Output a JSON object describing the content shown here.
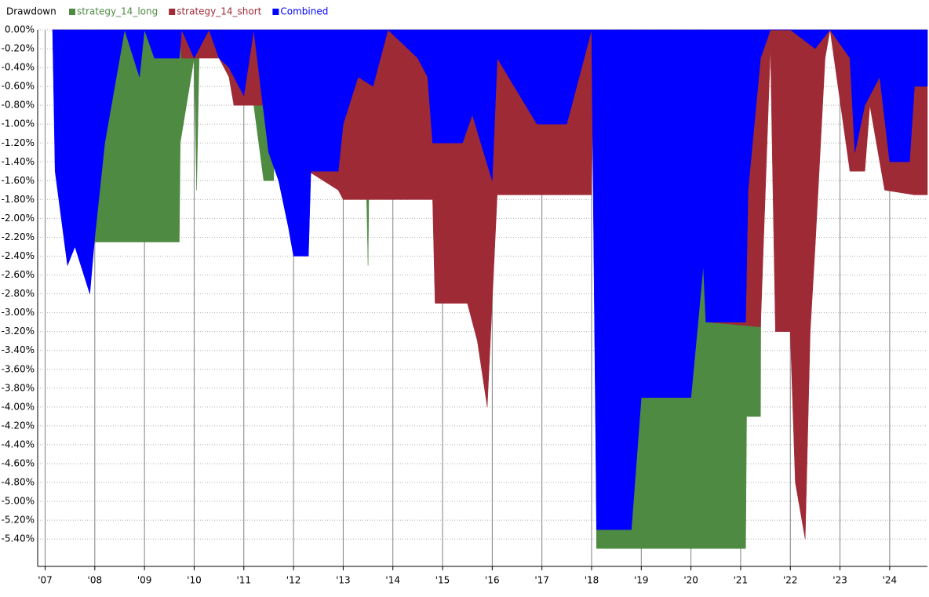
{
  "chart_data": {
    "type": "area",
    "title": "Drawdown",
    "xlim": [
      2006.85,
      2024.76
    ],
    "ylim": [
      -5.69,
      0
    ],
    "grid": true,
    "xticks": [
      {
        "value": 2007,
        "label": "'07"
      },
      {
        "value": 2008,
        "label": "'08"
      },
      {
        "value": 2009,
        "label": "'09"
      },
      {
        "value": 2010,
        "label": "'10"
      },
      {
        "value": 2011,
        "label": "'11"
      },
      {
        "value": 2012,
        "label": "'12"
      },
      {
        "value": 2013,
        "label": "'13"
      },
      {
        "value": 2014,
        "label": "'14"
      },
      {
        "value": 2015,
        "label": "'15"
      },
      {
        "value": 2016,
        "label": "'16"
      },
      {
        "value": 2017,
        "label": "'17"
      },
      {
        "value": 2018,
        "label": "'18"
      },
      {
        "value": 2019,
        "label": "'19"
      },
      {
        "value": 2020,
        "label": "'20"
      },
      {
        "value": 2021,
        "label": "'21"
      },
      {
        "value": 2022,
        "label": "'22"
      },
      {
        "value": 2023,
        "label": "'23"
      },
      {
        "value": 2024,
        "label": "'24"
      }
    ],
    "yticks": [
      {
        "value": 0,
        "label": "0.00%"
      },
      {
        "value": -0.2,
        "label": "-0.20%"
      },
      {
        "value": -0.4,
        "label": "-0.40%"
      },
      {
        "value": -0.6,
        "label": "-0.60%"
      },
      {
        "value": -0.8,
        "label": "-0.80%"
      },
      {
        "value": -1.0,
        "label": "-1.00%"
      },
      {
        "value": -1.2,
        "label": "-1.20%"
      },
      {
        "value": -1.4,
        "label": "-1.40%"
      },
      {
        "value": -1.6,
        "label": "-1.60%"
      },
      {
        "value": -1.8,
        "label": "-1.80%"
      },
      {
        "value": -2.0,
        "label": "-2.00%"
      },
      {
        "value": -2.2,
        "label": "-2.20%"
      },
      {
        "value": -2.4,
        "label": "-2.40%"
      },
      {
        "value": -2.6,
        "label": "-2.60%"
      },
      {
        "value": -2.8,
        "label": "-2.80%"
      },
      {
        "value": -3.0,
        "label": "-3.00%"
      },
      {
        "value": -3.2,
        "label": "-3.20%"
      },
      {
        "value": -3.4,
        "label": "-3.40%"
      },
      {
        "value": -3.6,
        "label": "-3.60%"
      },
      {
        "value": -3.8,
        "label": "-3.80%"
      },
      {
        "value": -4.0,
        "label": "-4.00%"
      },
      {
        "value": -4.2,
        "label": "-4.20%"
      },
      {
        "value": -4.4,
        "label": "-4.40%"
      },
      {
        "value": -4.6,
        "label": "-4.60%"
      },
      {
        "value": -4.8,
        "label": "-4.80%"
      },
      {
        "value": -5.0,
        "label": "-5.00%"
      },
      {
        "value": -5.2,
        "label": "-5.20%"
      },
      {
        "value": -5.4,
        "label": "-5.40%"
      }
    ],
    "series": [
      {
        "name": "strategy_14_long",
        "color": "#4e8a41",
        "x": [
          2007.15,
          2007.6,
          2008.0,
          2009.7,
          2009.72,
          2010.0,
          2010.05,
          2010.1,
          2010.2,
          2011.0,
          2011.4,
          2011.6,
          2011.65,
          2013.4,
          2013.5,
          2013.55,
          2018.05,
          2018.1,
          2021.1,
          2021.12,
          2021.4,
          2021.42,
          2022.9,
          2023.0,
          2023.2,
          2024.76
        ],
        "values": [
          0,
          -2.0,
          -2.25,
          -2.25,
          -1.2,
          -0.3,
          -1.7,
          -0.3,
          0,
          0,
          -1.6,
          -1.6,
          0,
          0,
          -2.5,
          0,
          0,
          -5.5,
          -5.5,
          -4.1,
          -4.1,
          0,
          0,
          -0.15,
          0,
          0
        ]
      },
      {
        "name": "strategy_14_short",
        "color": "#9e2a35",
        "x": [
          2007.15,
          2009.7,
          2009.75,
          2010.5,
          2010.7,
          2010.8,
          2011.4,
          2011.45,
          2012.3,
          2012.9,
          2013.0,
          2014.8,
          2014.85,
          2015.5,
          2015.7,
          2015.9,
          2016.1,
          2018.0,
          2018.05,
          2020.3,
          2020.35,
          2021.4,
          2021.6,
          2021.7,
          2022.0,
          2022.1,
          2022.3,
          2022.4,
          2022.5,
          2022.7,
          2022.8,
          2023.2,
          2023.5,
          2023.6,
          2023.9,
          2024.5,
          2024.76
        ],
        "values": [
          0,
          0,
          -0.3,
          -0.3,
          -0.5,
          -0.8,
          -0.8,
          0,
          -1.5,
          -1.7,
          -1.8,
          -1.8,
          -2.9,
          -2.9,
          -3.3,
          -4.0,
          -1.75,
          -1.75,
          0,
          0,
          -3.1,
          -3.15,
          -0.2,
          -3.2,
          -3.2,
          -4.8,
          -5.4,
          -3.2,
          -2.3,
          -0.3,
          0,
          -1.5,
          -1.5,
          -0.8,
          -1.7,
          -1.75,
          -1.75
        ]
      },
      {
        "name": "Combined",
        "color": "#0000ff",
        "x": [
          2007.15,
          2007.2,
          2007.45,
          2007.6,
          2007.9,
          2008.0,
          2008.2,
          2008.5,
          2008.6,
          2008.9,
          2009.0,
          2009.2,
          2009.7,
          2009.75,
          2010.0,
          2010.3,
          2010.5,
          2010.7,
          2011.0,
          2011.2,
          2011.5,
          2011.7,
          2011.9,
          2012.0,
          2012.3,
          2012.35,
          2012.9,
          2013.0,
          2013.3,
          2013.6,
          2013.9,
          2014.5,
          2014.7,
          2014.8,
          2015.4,
          2015.6,
          2016.0,
          2016.1,
          2016.9,
          2017.5,
          2018.0,
          2018.1,
          2018.8,
          2019.0,
          2020.0,
          2020.25,
          2020.3,
          2021.1,
          2021.15,
          2021.4,
          2021.6,
          2022.0,
          2022.5,
          2022.8,
          2023.2,
          2023.3,
          2023.5,
          2023.8,
          2024.0,
          2024.4,
          2024.5,
          2024.76
        ],
        "values": [
          0,
          -1.5,
          -2.5,
          -2.3,
          -2.8,
          -2.2,
          -1.2,
          -0.3,
          0,
          -0.5,
          0,
          -0.3,
          -0.3,
          0,
          -0.3,
          0,
          -0.3,
          -0.4,
          -0.7,
          0,
          -1.3,
          -1.6,
          -2.1,
          -2.4,
          -2.4,
          -1.5,
          -1.5,
          -1.0,
          -0.5,
          -0.6,
          0,
          -0.3,
          -0.5,
          -1.2,
          -1.2,
          -0.9,
          -1.6,
          -0.3,
          -1.0,
          -1.0,
          0,
          -5.3,
          -5.3,
          -3.9,
          -3.9,
          -2.5,
          -3.1,
          -3.1,
          -1.7,
          -0.3,
          0,
          0,
          -0.2,
          0,
          -0.3,
          -1.3,
          -0.8,
          -0.5,
          -1.4,
          -1.4,
          -0.6,
          -0.6
        ]
      }
    ]
  }
}
